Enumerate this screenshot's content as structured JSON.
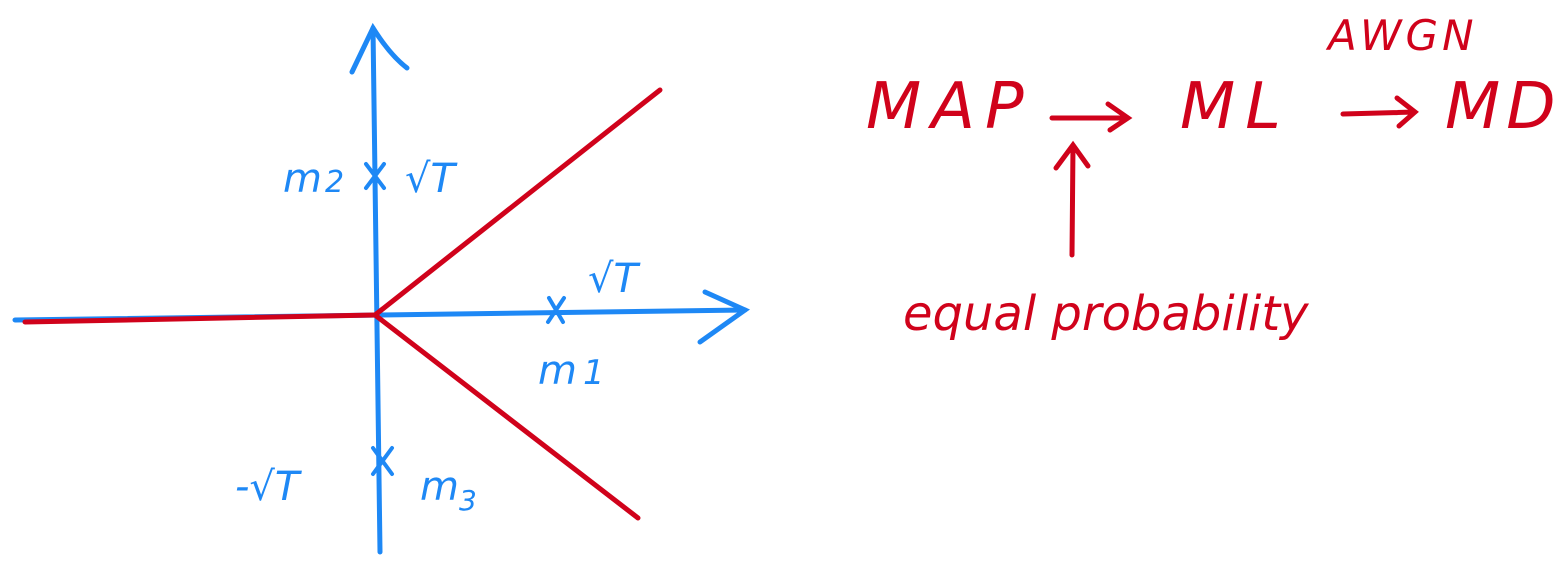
{
  "colors": {
    "axes": "#1E88F5",
    "boundaries": "#D0021B",
    "annotations": "#D0021B"
  },
  "constellation": {
    "points": [
      {
        "name": "m1",
        "subscript": "1",
        "value_label": "√T"
      },
      {
        "name": "m2",
        "subscript": "2",
        "value_label": "√T"
      },
      {
        "name": "m3",
        "subscript": "3",
        "value_label": "-√T"
      }
    ],
    "symbol_letter": "m",
    "marker": "x"
  },
  "flow": {
    "steps": [
      "MAP",
      "ML",
      "MD"
    ],
    "arrow1_condition": "equal probability",
    "arrow2_condition": "AWGN"
  }
}
